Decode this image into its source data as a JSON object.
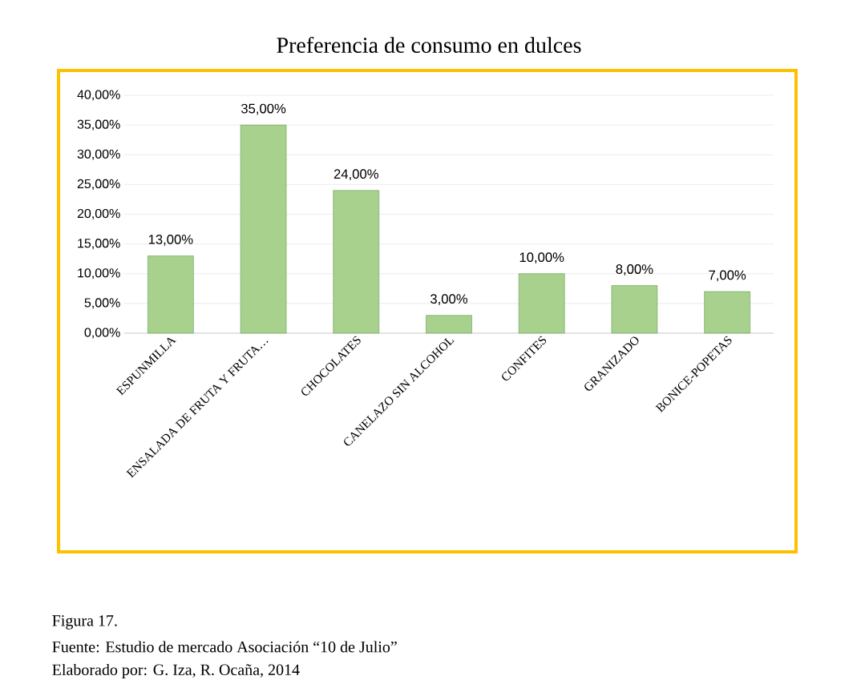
{
  "chart_data": {
    "type": "bar",
    "title": "Preferencia de consumo en dulces",
    "categories": [
      "ESPUNMILLA",
      "ENSALADA DE FRUTA Y FRUTA…",
      "CHOCOLATES",
      "CANELAZO SIN ALCOHOL",
      "CONFITES",
      "GRANIZADO",
      "BONICE-POPETAS"
    ],
    "values": [
      13,
      35,
      24,
      3,
      10,
      8,
      7
    ],
    "value_labels": [
      "13,00%",
      "35,00%",
      "24,00%",
      "3,00%",
      "10,00%",
      "8,00%",
      "7,00%"
    ],
    "color": "#a9d18e",
    "ylim": [
      0,
      40
    ],
    "yticks": [
      {
        "value": 0,
        "label": "0,00%"
      },
      {
        "value": 5,
        "label": "5,00%"
      },
      {
        "value": 10,
        "label": "10,00%"
      },
      {
        "value": 15,
        "label": "15,00%"
      },
      {
        "value": 20,
        "label": "20,00%"
      },
      {
        "value": 25,
        "label": "25,00%"
      },
      {
        "value": 30,
        "label": "30,00%"
      },
      {
        "value": 35,
        "label": "35,00%"
      },
      {
        "value": 40,
        "label": "40,00%"
      }
    ],
    "grid": "y",
    "annotations": [
      "Figura 17.",
      "Fuente: Estudio de mercado Asociación “10 de Julio”",
      "Elaborado por: G. Iza, R. Ocaña, 2014"
    ]
  }
}
